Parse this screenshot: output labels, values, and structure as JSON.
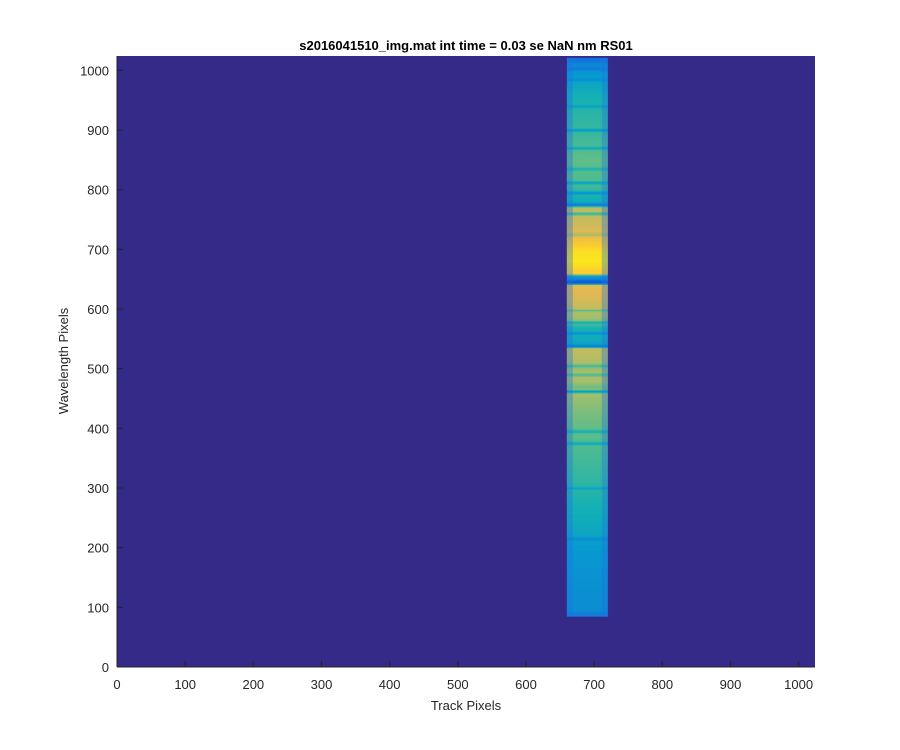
{
  "chart_data": {
    "type": "heatmap",
    "title": "s2016041510_img.mat int time = 0.03 se  NaN nm RS01",
    "xlabel": "Track Pixels",
    "ylabel": "Wavelength Pixels",
    "xlim": [
      0,
      1024
    ],
    "ylim": [
      0,
      1024
    ],
    "x_ticks": [
      0,
      100,
      200,
      300,
      400,
      500,
      600,
      700,
      800,
      900,
      1000
    ],
    "y_ticks": [
      0,
      100,
      200,
      300,
      400,
      500,
      600,
      700,
      800,
      900,
      1000
    ],
    "x_tick_labels": [
      "0",
      "100",
      "200",
      "300",
      "400",
      "500",
      "600",
      "700",
      "800",
      "900",
      "1000"
    ],
    "y_tick_labels": [
      "0",
      "100",
      "200",
      "300",
      "400",
      "500",
      "600",
      "700",
      "800",
      "900",
      "1000"
    ],
    "colormap": "parula",
    "background_color": "#352a87",
    "spectrum_stripe": {
      "track_range": [
        660,
        720
      ],
      "halo_range": [
        655,
        735
      ],
      "wavelength_range": [
        85,
        1020
      ],
      "intensity_profile": [
        {
          "y": 85,
          "v": 0.35
        },
        {
          "y": 100,
          "v": 0.38
        },
        {
          "y": 150,
          "v": 0.4
        },
        {
          "y": 200,
          "v": 0.44
        },
        {
          "y": 215,
          "v": 0.48
        },
        {
          "y": 225,
          "v": 0.5
        },
        {
          "y": 260,
          "v": 0.54
        },
        {
          "y": 300,
          "v": 0.58
        },
        {
          "y": 350,
          "v": 0.62
        },
        {
          "y": 400,
          "v": 0.66
        },
        {
          "y": 430,
          "v": 0.7
        },
        {
          "y": 460,
          "v": 0.75
        },
        {
          "y": 470,
          "v": 0.68
        },
        {
          "y": 480,
          "v": 0.76
        },
        {
          "y": 500,
          "v": 0.74
        },
        {
          "y": 520,
          "v": 0.78
        },
        {
          "y": 535,
          "v": 0.8
        },
        {
          "y": 540,
          "v": 0.48
        },
        {
          "y": 550,
          "v": 0.52
        },
        {
          "y": 570,
          "v": 0.56
        },
        {
          "y": 580,
          "v": 0.72
        },
        {
          "y": 600,
          "v": 0.8
        },
        {
          "y": 620,
          "v": 0.84
        },
        {
          "y": 640,
          "v": 0.86
        },
        {
          "y": 645,
          "v": 0.2
        },
        {
          "y": 650,
          "v": 0.3
        },
        {
          "y": 660,
          "v": 0.92
        },
        {
          "y": 680,
          "v": 0.97
        },
        {
          "y": 700,
          "v": 0.95
        },
        {
          "y": 720,
          "v": 0.88
        },
        {
          "y": 740,
          "v": 0.82
        },
        {
          "y": 770,
          "v": 0.78
        },
        {
          "y": 775,
          "v": 0.5
        },
        {
          "y": 790,
          "v": 0.56
        },
        {
          "y": 800,
          "v": 0.6
        },
        {
          "y": 820,
          "v": 0.64
        },
        {
          "y": 850,
          "v": 0.66
        },
        {
          "y": 880,
          "v": 0.62
        },
        {
          "y": 900,
          "v": 0.6
        },
        {
          "y": 930,
          "v": 0.58
        },
        {
          "y": 960,
          "v": 0.54
        },
        {
          "y": 990,
          "v": 0.46
        },
        {
          "y": 1005,
          "v": 0.38
        },
        {
          "y": 1020,
          "v": 0.3
        }
      ],
      "absorption_lines": [
        {
          "y": 215,
          "depth": 0.5
        },
        {
          "y": 300,
          "depth": 0.3
        },
        {
          "y": 375,
          "depth": 0.4
        },
        {
          "y": 395,
          "depth": 0.35
        },
        {
          "y": 462,
          "depth": 0.7
        },
        {
          "y": 490,
          "depth": 0.3
        },
        {
          "y": 505,
          "depth": 0.4
        },
        {
          "y": 538,
          "depth": 0.9
        },
        {
          "y": 560,
          "depth": 0.5
        },
        {
          "y": 578,
          "depth": 0.4
        },
        {
          "y": 598,
          "depth": 0.3
        },
        {
          "y": 645,
          "depth": 1.0
        },
        {
          "y": 655,
          "depth": 0.6
        },
        {
          "y": 725,
          "depth": 0.3
        },
        {
          "y": 760,
          "depth": 0.5
        },
        {
          "y": 775,
          "depth": 0.9
        },
        {
          "y": 795,
          "depth": 0.6
        },
        {
          "y": 812,
          "depth": 0.4
        },
        {
          "y": 835,
          "depth": 0.3
        },
        {
          "y": 870,
          "depth": 0.35
        },
        {
          "y": 900,
          "depth": 0.45
        },
        {
          "y": 940,
          "depth": 0.3
        },
        {
          "y": 985,
          "depth": 0.4
        },
        {
          "y": 1003,
          "depth": 0.6
        }
      ]
    },
    "grid": false
  }
}
